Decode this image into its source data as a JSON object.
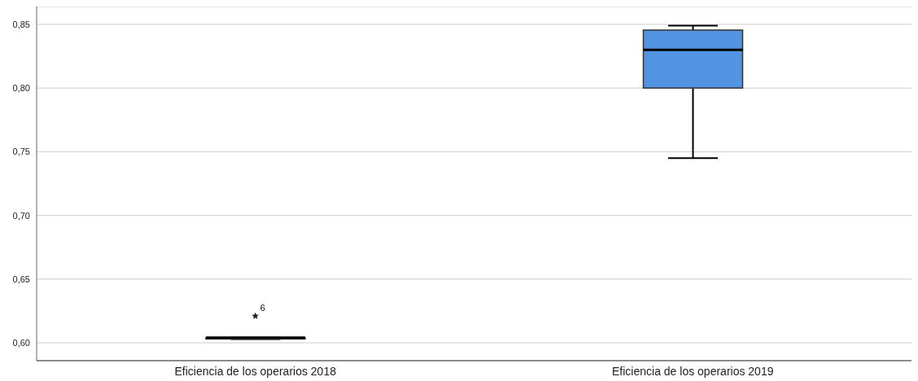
{
  "chart_data": {
    "type": "box",
    "categories": [
      "Eficiencia de los operarios 2018",
      "Eficiencia de los operarios 2019"
    ],
    "color": "#5294e2",
    "boxes": [
      {
        "low": 0.603,
        "q1": 0.603,
        "median": 0.604,
        "q3": 0.604,
        "high": 0.604,
        "outliers": [
          0.621
        ]
      },
      {
        "low": 0.745,
        "q1": 0.8,
        "median": 0.83,
        "q3": 0.8455,
        "high": 0.849
      }
    ],
    "ylim": [
      0.586,
      0.864
    ],
    "yticks": [
      {
        "value": 0.6,
        "label": "0,60"
      },
      {
        "value": 0.65,
        "label": "0,65"
      },
      {
        "value": 0.7,
        "label": "0,70"
      },
      {
        "value": 0.75,
        "label": "0,75"
      },
      {
        "value": 0.8,
        "label": "0,80"
      },
      {
        "value": 0.85,
        "label": "0,85"
      }
    ],
    "grid": "y",
    "annotations": [
      "6"
    ]
  }
}
